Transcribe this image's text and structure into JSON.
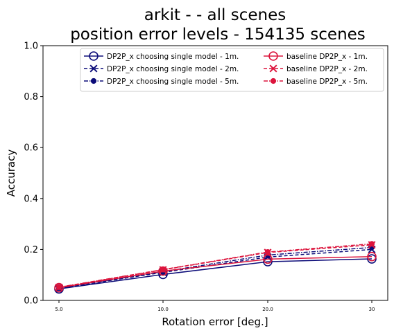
{
  "chart_data": {
    "type": "line",
    "title_line1": "arkit -  - all scenes",
    "title_line2": "position error levels - 154135 scenes",
    "xlabel": "Rotation error [deg.]",
    "ylabel": "Accuracy",
    "x_tick_labels": [
      "5.0",
      "10.0",
      "20.0",
      "30"
    ],
    "y_tick_labels": [
      "0.0",
      "0.2",
      "0.4",
      "0.6",
      "0.8",
      "1.0"
    ],
    "y_ticks": [
      0.0,
      0.2,
      0.4,
      0.6,
      0.8,
      1.0
    ],
    "ylim": [
      0,
      1
    ],
    "x_positions": [
      0,
      1,
      2,
      3
    ],
    "grid": false,
    "legend_position": "top-right",
    "colors": {
      "dp2p": "#0b0b78",
      "baseline": "#dc143c"
    },
    "series": [
      {
        "name": "DP2P_x choosing single model - 1m.",
        "color": "#0b0b78",
        "marker": "open-circle",
        "dash": "solid",
        "values": [
          0.045,
          0.102,
          0.152,
          0.163
        ]
      },
      {
        "name": "DP2P_x choosing single model - 2m.",
        "color": "#0b0b78",
        "marker": "x",
        "dash": "dashed",
        "values": [
          0.047,
          0.11,
          0.17,
          0.2
        ]
      },
      {
        "name": "DP2P_x choosing single model - 5m.",
        "color": "#0b0b78",
        "marker": "dot",
        "dash": "dashdot",
        "values": [
          0.048,
          0.113,
          0.178,
          0.208
        ]
      },
      {
        "name": "baseline DP2P_x - 1m.",
        "color": "#dc143c",
        "marker": "open-circle",
        "dash": "solid",
        "values": [
          0.05,
          0.115,
          0.162,
          0.172
        ]
      },
      {
        "name": "baseline DP2P_x - 2m.",
        "color": "#dc143c",
        "marker": "x",
        "dash": "dashed",
        "values": [
          0.051,
          0.12,
          0.188,
          0.218
        ]
      },
      {
        "name": "baseline DP2P_x - 5m.",
        "color": "#dc143c",
        "marker": "dot",
        "dash": "dashdot",
        "values": [
          0.052,
          0.121,
          0.19,
          0.222
        ]
      }
    ]
  }
}
